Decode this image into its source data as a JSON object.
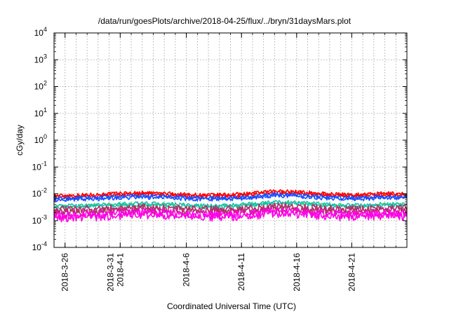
{
  "chart_data": {
    "type": "line",
    "title": "/data/run/goesPlots/archive/2018-04-25/flux/../bryn/31daysMars.plot",
    "xlabel": "Coordinated Universal Time (UTC)",
    "ylabel": "cGy/day",
    "x_range": [
      "2018-03-25",
      "2018-04-26"
    ],
    "y_scale": "log",
    "y_range": [
      0.0001,
      10000
    ],
    "y_ticks": [
      {
        "value": 0.0001,
        "base": "10",
        "exp": "-4"
      },
      {
        "value": 0.001,
        "base": "10",
        "exp": "-3"
      },
      {
        "value": 0.01,
        "base": "10",
        "exp": "-2"
      },
      {
        "value": 0.1,
        "base": "10",
        "exp": "-1"
      },
      {
        "value": 1,
        "base": "10",
        "exp": "0"
      },
      {
        "value": 10,
        "base": "10",
        "exp": "1"
      },
      {
        "value": 100,
        "base": "10",
        "exp": "2"
      },
      {
        "value": 1000,
        "base": "10",
        "exp": "3"
      },
      {
        "value": 10000,
        "base": "10",
        "exp": "4"
      }
    ],
    "x_ticks": [
      {
        "date": "2018-03-26",
        "lines": [
          "2018-3-26"
        ]
      },
      {
        "date": "2018-03-31",
        "lines": [
          "2018-3-31",
          "2018-4-1"
        ]
      },
      {
        "date": "2018-04-06",
        "lines": [
          "2018-4-6"
        ]
      },
      {
        "date": "2018-04-11",
        "lines": [
          "2018-4-11"
        ]
      },
      {
        "date": "2018-04-16",
        "lines": [
          "2018-4-16"
        ]
      },
      {
        "date": "2018-04-21",
        "lines": [
          "2018-4-21"
        ]
      }
    ],
    "grid": true,
    "legend": "none",
    "series": [
      {
        "color": "#ff0000",
        "values": [
          [
            "2018-03-25",
            0.0085
          ],
          [
            "2018-03-27",
            0.009
          ],
          [
            "2018-03-29",
            0.0095
          ],
          [
            "2018-03-31",
            0.0105
          ],
          [
            "2018-04-02",
            0.011
          ],
          [
            "2018-04-04",
            0.0105
          ],
          [
            "2018-04-06",
            0.0095
          ],
          [
            "2018-04-08",
            0.009
          ],
          [
            "2018-04-10",
            0.0095
          ],
          [
            "2018-04-12",
            0.0105
          ],
          [
            "2018-04-14",
            0.0125
          ],
          [
            "2018-04-16",
            0.012
          ],
          [
            "2018-04-18",
            0.0105
          ],
          [
            "2018-04-20",
            0.0095
          ],
          [
            "2018-04-22",
            0.0095
          ],
          [
            "2018-04-24",
            0.0105
          ],
          [
            "2018-04-26",
            0.01
          ]
        ]
      },
      {
        "color": "#1a4dff",
        "values": [
          [
            "2018-03-25",
            0.0066
          ],
          [
            "2018-03-27",
            0.007
          ],
          [
            "2018-03-29",
            0.0073
          ],
          [
            "2018-03-31",
            0.008
          ],
          [
            "2018-04-02",
            0.0083
          ],
          [
            "2018-04-04",
            0.008
          ],
          [
            "2018-04-06",
            0.0073
          ],
          [
            "2018-04-08",
            0.007
          ],
          [
            "2018-04-10",
            0.0073
          ],
          [
            "2018-04-12",
            0.008
          ],
          [
            "2018-04-14",
            0.0095
          ],
          [
            "2018-04-16",
            0.0093
          ],
          [
            "2018-04-18",
            0.008
          ],
          [
            "2018-04-20",
            0.0073
          ],
          [
            "2018-04-22",
            0.0073
          ],
          [
            "2018-04-24",
            0.008
          ],
          [
            "2018-04-26",
            0.0077
          ]
        ]
      },
      {
        "color": "#19c2a0",
        "values": [
          [
            "2018-03-25",
            0.0035
          ],
          [
            "2018-03-27",
            0.0037
          ],
          [
            "2018-03-29",
            0.0039
          ],
          [
            "2018-03-31",
            0.0042
          ],
          [
            "2018-04-02",
            0.0044
          ],
          [
            "2018-04-04",
            0.0042
          ],
          [
            "2018-04-06",
            0.0038
          ],
          [
            "2018-04-08",
            0.0036
          ],
          [
            "2018-04-10",
            0.0038
          ],
          [
            "2018-04-12",
            0.0042
          ],
          [
            "2018-04-14",
            0.005
          ],
          [
            "2018-04-16",
            0.0048
          ],
          [
            "2018-04-18",
            0.0042
          ],
          [
            "2018-04-20",
            0.0038
          ],
          [
            "2018-04-22",
            0.0038
          ],
          [
            "2018-04-24",
            0.0042
          ],
          [
            "2018-04-26",
            0.004
          ]
        ]
      },
      {
        "color": "#b0306a",
        "values": [
          [
            "2018-03-25",
            0.0026
          ],
          [
            "2018-03-27",
            0.0027
          ],
          [
            "2018-03-29",
            0.0028
          ],
          [
            "2018-03-31",
            0.003
          ],
          [
            "2018-04-02",
            0.0032
          ],
          [
            "2018-04-04",
            0.003
          ],
          [
            "2018-04-06",
            0.0028
          ],
          [
            "2018-04-08",
            0.0027
          ],
          [
            "2018-04-10",
            0.0028
          ],
          [
            "2018-04-12",
            0.003
          ],
          [
            "2018-04-14",
            0.0035
          ],
          [
            "2018-04-16",
            0.0034
          ],
          [
            "2018-04-18",
            0.003
          ],
          [
            "2018-04-20",
            0.0028
          ],
          [
            "2018-04-22",
            0.0028
          ],
          [
            "2018-04-24",
            0.003
          ],
          [
            "2018-04-26",
            0.0029
          ]
        ]
      },
      {
        "color": "#ff00e6",
        "values": [
          [
            "2018-03-25",
            0.0016
          ],
          [
            "2018-03-27",
            0.0017
          ],
          [
            "2018-03-29",
            0.0018
          ],
          [
            "2018-03-31",
            0.002
          ],
          [
            "2018-04-02",
            0.0021
          ],
          [
            "2018-04-04",
            0.002
          ],
          [
            "2018-04-06",
            0.0018
          ],
          [
            "2018-04-08",
            0.0017
          ],
          [
            "2018-04-10",
            0.0018
          ],
          [
            "2018-04-12",
            0.002
          ],
          [
            "2018-04-14",
            0.0024
          ],
          [
            "2018-04-16",
            0.0023
          ],
          [
            "2018-04-18",
            0.002
          ],
          [
            "2018-04-20",
            0.0018
          ],
          [
            "2018-04-22",
            0.0018
          ],
          [
            "2018-04-24",
            0.002
          ],
          [
            "2018-04-26",
            0.0019
          ]
        ]
      }
    ]
  }
}
